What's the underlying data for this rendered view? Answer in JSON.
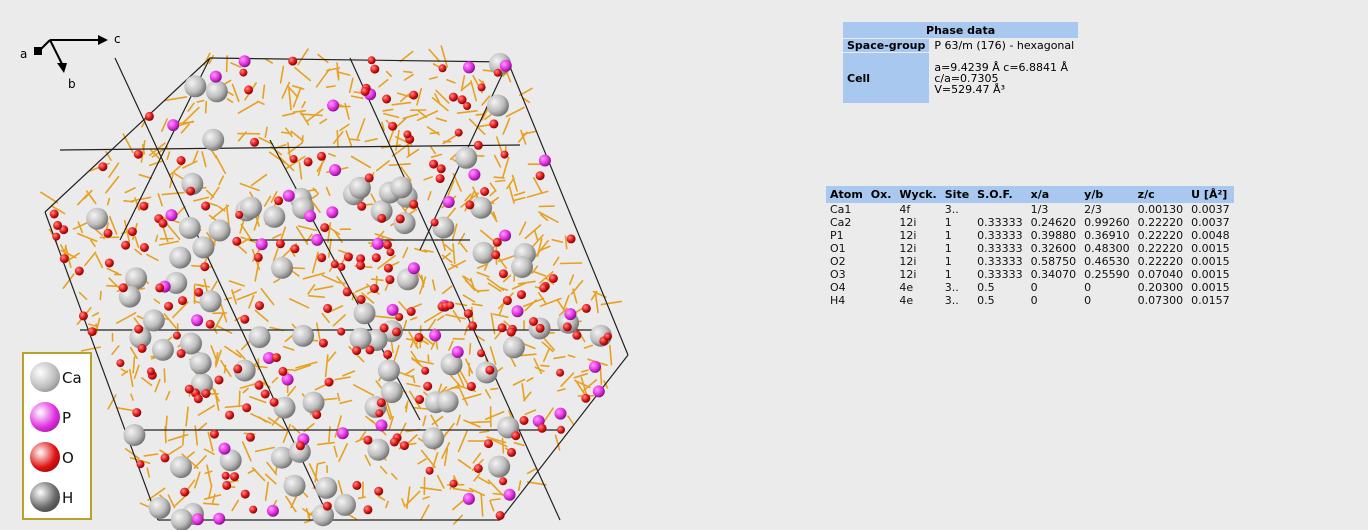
{
  "axes": {
    "a": "a",
    "b": "b",
    "c": "c"
  },
  "legend": [
    {
      "symbol": "Ca",
      "color": "#bdbdbd",
      "shade": "#6e6e6e"
    },
    {
      "symbol": "P",
      "color": "#e02ee0",
      "shade": "#7a107a"
    },
    {
      "symbol": "O",
      "color": "#e01212",
      "shade": "#6a0606"
    },
    {
      "symbol": "H",
      "color": "#6a6a6a",
      "shade": "#2a2a2a"
    }
  ],
  "phase": {
    "title": "Phase data",
    "space_group_label": "Space-group",
    "space_group_value": "P 63/m (176) - hexagonal",
    "cell_label": "Cell",
    "cell_lines": [
      "a=9.4239 Å  c=6.8841 Å",
      "c/a=0.7305",
      "V=529.47 Å³"
    ]
  },
  "atoms": {
    "headers": [
      "Atom",
      "Ox.",
      "Wyck.",
      "Site",
      "S.O.F.",
      "x/a",
      "y/b",
      "z/c",
      "U [Å²]"
    ],
    "rows": [
      [
        "Ca1",
        "",
        "4f",
        "3..",
        "",
        "1/3",
        "2/3",
        "0.00130",
        "0.0037"
      ],
      [
        "Ca2",
        "",
        "12i",
        "1",
        "0.33333",
        "0.24620",
        "0.99260",
        "0.22220",
        "0.0037"
      ],
      [
        "P1",
        "",
        "12i",
        "1",
        "0.33333",
        "0.39880",
        "0.36910",
        "0.22220",
        "0.0048"
      ],
      [
        "O1",
        "",
        "12i",
        "1",
        "0.33333",
        "0.32600",
        "0.48300",
        "0.22220",
        "0.0015"
      ],
      [
        "O2",
        "",
        "12i",
        "1",
        "0.33333",
        "0.58750",
        "0.46530",
        "0.22220",
        "0.0015"
      ],
      [
        "O3",
        "",
        "12i",
        "1",
        "0.33333",
        "0.34070",
        "0.25590",
        "0.07040",
        "0.0015"
      ],
      [
        "O4",
        "",
        "4e",
        "3..",
        "0.5",
        "0",
        "0",
        "0.20300",
        "0.0015"
      ],
      [
        "H4",
        "",
        "4e",
        "3..",
        "0.5",
        "0",
        "0",
        "0.07300",
        "0.0157"
      ]
    ]
  },
  "colors": {
    "bond": "#e8a020",
    "cell_edge": "#222222",
    "header_bg": "#a9c8f0",
    "legend_border": "#b9a22a"
  }
}
